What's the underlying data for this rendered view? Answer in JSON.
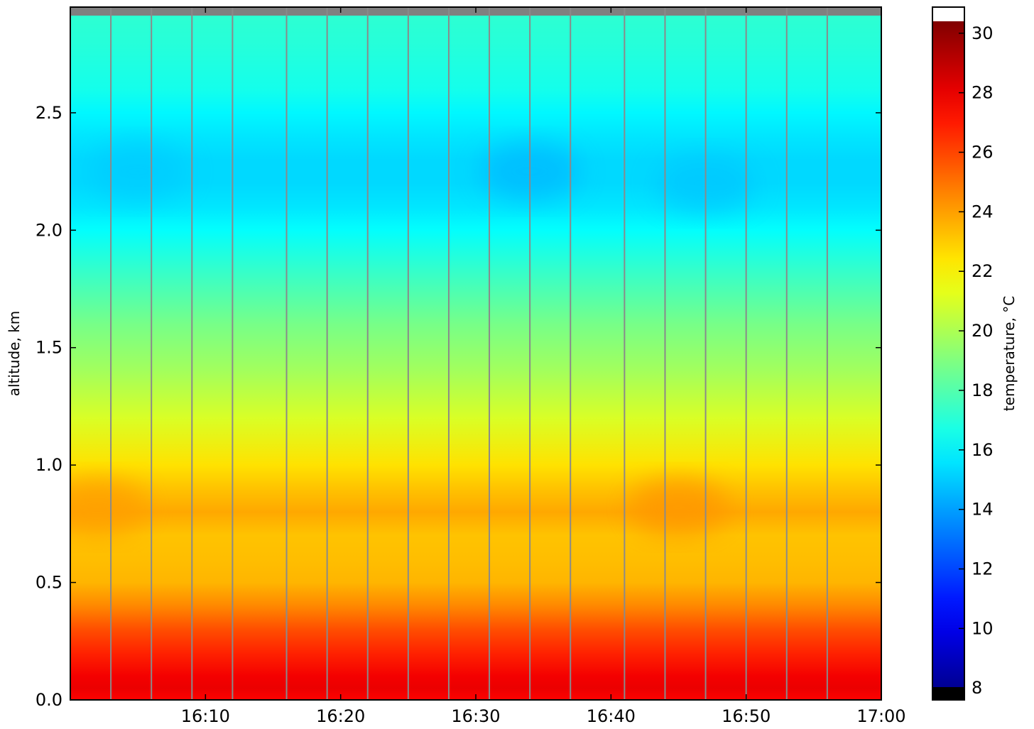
{
  "chart_data": {
    "type": "heatmap",
    "title": "",
    "xlabel": "",
    "ylabel": "altitude, km",
    "colorbar_label": "temperature, °C",
    "xlim": [
      "16:00",
      "17:00"
    ],
    "ylim": [
      0.0,
      2.95
    ],
    "x_ticks": [
      "16:10",
      "16:20",
      "16:30",
      "16:40",
      "16:50",
      "17:00"
    ],
    "y_ticks": [
      "0.0",
      "0.5",
      "1.0",
      "1.5",
      "2.0",
      "2.5"
    ],
    "colorbar_range": [
      7.6,
      30.4
    ],
    "colorbar_ticks": [
      "8",
      "10",
      "12",
      "14",
      "16",
      "18",
      "20",
      "22",
      "24",
      "26",
      "28",
      "30"
    ],
    "colormap": "jet",
    "altitude_km": [
      0.0,
      0.05,
      0.1,
      0.2,
      0.3,
      0.4,
      0.5,
      0.6,
      0.7,
      0.8,
      0.9,
      1.0,
      1.2,
      1.4,
      1.6,
      1.8,
      2.0,
      2.1,
      2.2,
      2.3,
      2.4,
      2.5,
      2.6,
      2.8,
      2.95
    ],
    "temperature_profile_c": [
      27.5,
      28.0,
      27.8,
      26.8,
      25.8,
      24.5,
      23.5,
      23.3,
      23.2,
      23.8,
      23.2,
      22.5,
      21.0,
      19.8,
      18.8,
      17.5,
      16.2,
      15.6,
      15.3,
      15.3,
      15.6,
      16.0,
      16.6,
      17.0,
      17.2
    ],
    "scan_boundaries": [
      "16:03",
      "16:06",
      "16:09",
      "16:12",
      "16:16",
      "16:19",
      "16:22",
      "16:25",
      "16:28",
      "16:31",
      "16:34",
      "16:37",
      "16:41",
      "16:44",
      "16:47",
      "16:50",
      "16:53",
      "16:56"
    ],
    "cold_patches": [
      {
        "time": "16:34",
        "altitude_km": 2.25,
        "temperature_c": 14.6
      },
      {
        "time": "16:47",
        "altitude_km": 2.2,
        "temperature_c": 14.9
      },
      {
        "time": "16:05",
        "altitude_km": 2.25,
        "temperature_c": 15.0
      }
    ],
    "warm_patches": [
      {
        "time": "16:45",
        "altitude_km": 0.82,
        "temperature_c": 24.2
      },
      {
        "time": "16:02",
        "altitude_km": 0.82,
        "temperature_c": 24.0
      }
    ],
    "grid": false,
    "legend": "none"
  }
}
